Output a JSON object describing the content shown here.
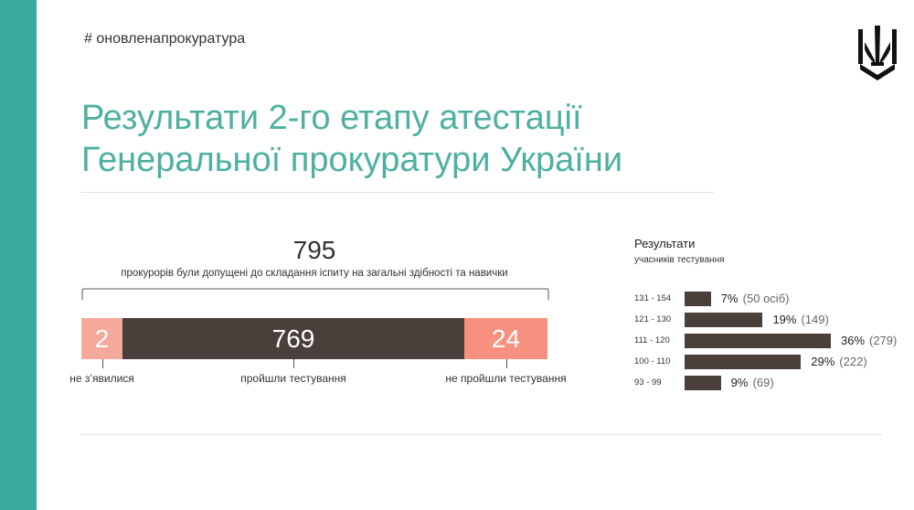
{
  "header": {
    "hashtag": "# оновленапрокуратура",
    "title_line1": "Результати 2-го етапу атестації",
    "title_line2": "Генеральної прокуратури України"
  },
  "colors": {
    "accent": "#3aaa9c",
    "title": "#4eb0a2",
    "dark": "#4a3f3a",
    "salmon_light": "#f5a99a",
    "salmon": "#f7907f"
  },
  "chart_data": [
    {
      "type": "bar",
      "orientation": "horizontal-stacked",
      "title": "795",
      "subtitle": "прокурорів були допущені до складання іспиту на загальні здібності та навички",
      "total": 795,
      "series": [
        {
          "name": "не з’явилися",
          "value": 2,
          "label": "2",
          "color": "#f5a99a"
        },
        {
          "name": "пройшли тестування",
          "value": 769,
          "label": "769",
          "color": "#4a3f3a"
        },
        {
          "name": "не пройшли тестування",
          "value": 24,
          "label": "24",
          "color": "#f7907f"
        }
      ]
    },
    {
      "type": "bar",
      "orientation": "horizontal",
      "title": "Результати",
      "subtitle": "учасників тестування",
      "categories": [
        "131 - 154",
        "121 - 130",
        "111 - 120",
        "100 - 110",
        "93 - 99"
      ],
      "percent_labels": [
        "7%",
        "19%",
        "36%",
        "29%",
        "9%"
      ],
      "count_labels": [
        "(50 осіб)",
        "(149)",
        "(279)",
        "(222)",
        "(69)"
      ],
      "values": [
        50,
        149,
        279,
        222,
        69
      ]
    }
  ]
}
